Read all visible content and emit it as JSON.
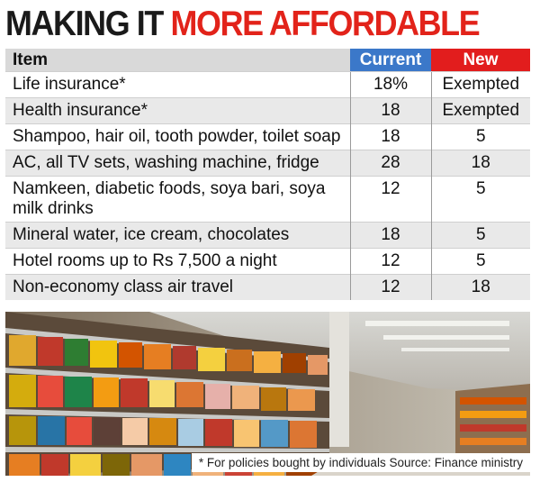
{
  "headline": {
    "part1": "MAKING IT ",
    "part2": "MORE AFFORDABLE"
  },
  "table": {
    "headers": {
      "item": "Item",
      "current": "Current",
      "new": "New"
    },
    "rows": [
      {
        "item": "Life insurance*",
        "current": "18%",
        "new": "Exempted"
      },
      {
        "item": "Health insurance*",
        "current": "18",
        "new": "Exempted"
      },
      {
        "item": "Shampoo, hair oil, tooth powder, toilet soap",
        "current": "18",
        "new": "5"
      },
      {
        "item": "AC, all TV sets, washing machine, fridge",
        "current": "28",
        "new": "18"
      },
      {
        "item": "Namkeen, diabetic foods, soya bari, soya milk drinks",
        "current": "12",
        "new": "5"
      },
      {
        "item": "Mineral water, ice cream, chocolates",
        "current": "18",
        "new": "5"
      },
      {
        "item": "Hotel rooms up to Rs 7,500 a night",
        "current": "12",
        "new": "5"
      },
      {
        "item": "Non-economy class air travel",
        "current": "12",
        "new": "18"
      }
    ]
  },
  "footnote": "* For policies bought by individuals Source: Finance ministry",
  "colors": {
    "headline_red": "#e2231a",
    "current_header": "#3b78c9",
    "new_header": "#e21d1d",
    "item_header": "#d9d9d9",
    "zebra": "#e9e9e9"
  }
}
